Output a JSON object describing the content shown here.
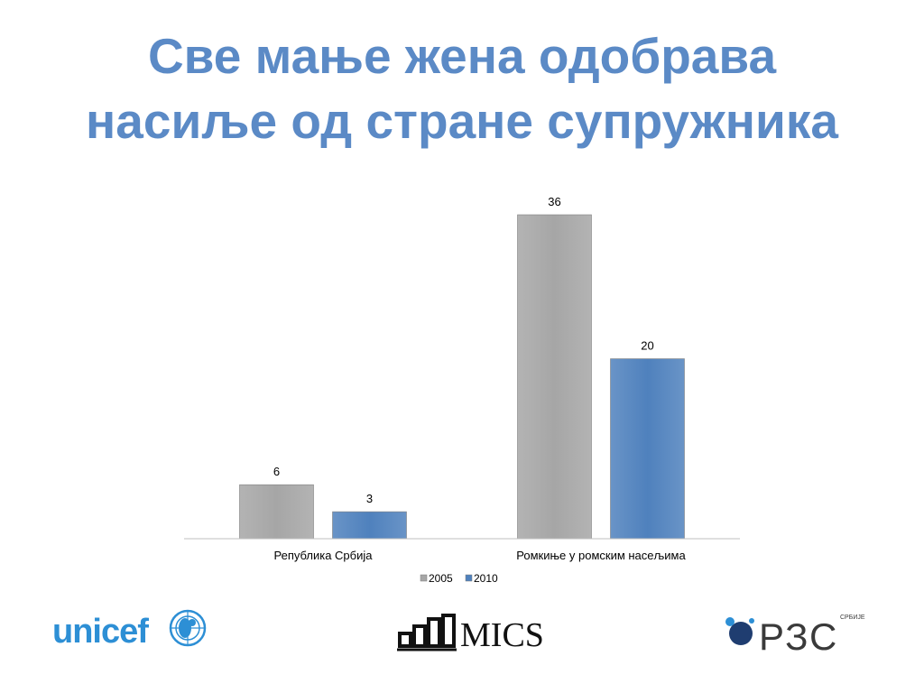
{
  "title": {
    "line1": "Све мање жена одобрава",
    "line2": "насиље од стране супружника"
  },
  "colors": {
    "title": "#5b8ac6",
    "series_2005": "#a6a6a6",
    "series_2010": "#4f81bd",
    "axis": "#bfbfbf"
  },
  "chart_data": {
    "type": "bar",
    "categories": [
      "Република Србија",
      "Ромкиње у ромским насељима"
    ],
    "series": [
      {
        "name": "2005",
        "values": [
          6,
          36
        ]
      },
      {
        "name": "2010",
        "values": [
          3,
          20
        ]
      }
    ],
    "data_labels": true,
    "ylim": [
      0,
      36
    ],
    "grid": false,
    "legend": "bottom"
  },
  "logos": {
    "unicef": "unicef",
    "mics": "MICS",
    "rzs": "РЗС",
    "rzs_small": "СРБИЈЕ"
  }
}
